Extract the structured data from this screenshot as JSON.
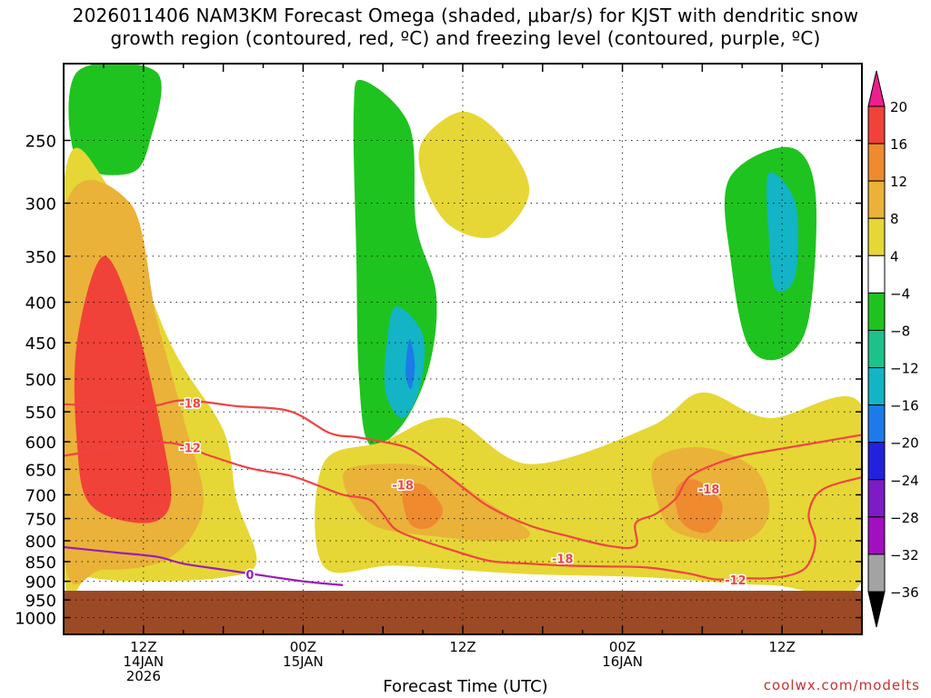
{
  "title": {
    "line1": "2026011406 NAM3KM Forecast Omega (shaded, μbar/s) for KJST with dendritic snow",
    "line2": "growth region (contoured, red, ºC) and freezing level (contoured, purple, ºC)"
  },
  "credit": "coolwx.com/modelts",
  "chart_data": {
    "type": "heatmap",
    "title": "2026011406 NAM3KM Forecast Omega (shaded, μbar/s) for KJST with dendritic snow growth region (contoured, red, ºC) and freezing level (contoured, purple, ºC)",
    "xlabel": "Forecast Time (UTC)",
    "ylabel": "",
    "x_unit": "hours since 2026-01-14 06Z",
    "xlim": [
      0,
      60
    ],
    "ylim_hpa": [
      1050,
      200
    ],
    "y_scale": "log-pressure",
    "yticks": [
      250,
      300,
      350,
      400,
      450,
      500,
      550,
      600,
      650,
      700,
      750,
      800,
      850,
      900,
      950,
      1000
    ],
    "xticks": [
      {
        "x": 6,
        "lines": [
          "12Z",
          "14JAN",
          "2026"
        ]
      },
      {
        "x": 18,
        "lines": [
          "00Z",
          "15JAN"
        ]
      },
      {
        "x": 30,
        "lines": [
          "12Z"
        ]
      },
      {
        "x": 42,
        "lines": [
          "00Z",
          "16JAN"
        ]
      },
      {
        "x": 54,
        "lines": [
          "12Z"
        ]
      }
    ],
    "grid": true,
    "surface_pressure_hpa": 925,
    "colorbar": {
      "labels": [
        20,
        16,
        12,
        8,
        4,
        -4,
        -8,
        -12,
        -16,
        -20,
        -24,
        -28,
        -32,
        -36
      ],
      "colors": [
        "#ed1f8c",
        "#f04238",
        "#ef8a2f",
        "#eab239",
        "#e6d736",
        "#ffffff",
        "#1fc31f",
        "#1dc28a",
        "#12b4c6",
        "#1c7be8",
        "#2222de",
        "#7d1bc4",
        "#a10fbf",
        "#a3a3a3",
        "#000000"
      ],
      "unit": "μbar/s"
    },
    "omega_regions": [
      {
        "name": "green-tl",
        "value": -6,
        "points": [
          [
            1,
            205
          ],
          [
            7,
            205
          ],
          [
            6.5,
            250
          ],
          [
            5,
            275
          ],
          [
            1,
            265
          ]
        ]
      },
      {
        "name": "green-mid",
        "value": -6,
        "points": [
          [
            22.5,
            210
          ],
          [
            26,
            240
          ],
          [
            26.5,
            320
          ],
          [
            28,
            390
          ],
          [
            27.5,
            480
          ],
          [
            25.5,
            570
          ],
          [
            23,
            605
          ],
          [
            22.2,
            500
          ],
          [
            22,
            350
          ],
          [
            21.8,
            230
          ]
        ]
      },
      {
        "name": "cyan-mid",
        "value": -12,
        "points": [
          [
            25,
            405
          ],
          [
            27,
            440
          ],
          [
            26.8,
            510
          ],
          [
            25.5,
            560
          ],
          [
            24.2,
            520
          ],
          [
            24.3,
            450
          ]
        ]
      },
      {
        "name": "blue-mid",
        "value": -18,
        "points": [
          [
            26,
            445
          ],
          [
            26.4,
            480
          ],
          [
            26.1,
            515
          ],
          [
            25.7,
            490
          ]
        ]
      },
      {
        "name": "green-right",
        "value": -6,
        "points": [
          [
            50,
            280
          ],
          [
            54.5,
            255
          ],
          [
            56.5,
            290
          ],
          [
            56,
            420
          ],
          [
            54,
            470
          ],
          [
            51.5,
            455
          ],
          [
            50.2,
            360
          ]
        ]
      },
      {
        "name": "cyan-right",
        "value": -12,
        "points": [
          [
            53,
            275
          ],
          [
            55,
            300
          ],
          [
            55,
            370
          ],
          [
            53.5,
            385
          ],
          [
            53,
            330
          ]
        ]
      },
      {
        "name": "yellow-top",
        "value": 6,
        "points": [
          [
            27,
            250
          ],
          [
            30,
            230
          ],
          [
            33,
            248
          ],
          [
            35,
            290
          ],
          [
            32.5,
            330
          ],
          [
            29,
            320
          ],
          [
            27,
            280
          ]
        ]
      },
      {
        "name": "yellow-main",
        "value": 6,
        "points": [
          [
            0,
            285
          ],
          [
            3,
            280
          ],
          [
            8,
            450
          ],
          [
            12,
            580
          ],
          [
            13,
            710
          ],
          [
            14.5,
            850
          ],
          [
            12,
            890
          ],
          [
            6,
            900
          ],
          [
            2,
            890
          ],
          [
            0,
            860
          ]
        ]
      },
      {
        "name": "yellow-low",
        "value": 6,
        "points": [
          [
            19.5,
            640
          ],
          [
            24,
            600
          ],
          [
            29,
            560
          ],
          [
            35,
            640
          ],
          [
            44,
            575
          ],
          [
            48,
            520
          ],
          [
            53,
            560
          ],
          [
            60,
            540
          ],
          [
            60,
            900
          ],
          [
            53,
            910
          ],
          [
            44,
            890
          ],
          [
            34,
            880
          ],
          [
            25,
            860
          ],
          [
            19.5,
            860
          ]
        ]
      },
      {
        "name": "orange-left",
        "value": 12,
        "points": [
          [
            0,
            310
          ],
          [
            5,
            300
          ],
          [
            7,
            420
          ],
          [
            9,
            560
          ],
          [
            10.5,
            720
          ],
          [
            8,
            840
          ],
          [
            3,
            870
          ],
          [
            0,
            830
          ]
        ]
      },
      {
        "name": "magenta-left",
        "value": 20,
        "points": [
          [
            1,
            450
          ],
          [
            3,
            350
          ],
          [
            5.5,
            430
          ],
          [
            7.5,
            600
          ],
          [
            8,
            720
          ],
          [
            6,
            760
          ],
          [
            2,
            720
          ],
          [
            1,
            600
          ]
        ]
      },
      {
        "name": "orange-mid",
        "value": 12,
        "points": [
          [
            21,
            660
          ],
          [
            24,
            640
          ],
          [
            28,
            650
          ],
          [
            31,
            700
          ],
          [
            35,
            780
          ],
          [
            33,
            800
          ],
          [
            28,
            790
          ],
          [
            23,
            760
          ]
        ]
      },
      {
        "name": "red-mid",
        "value": 16,
        "points": [
          [
            25.5,
            690
          ],
          [
            27,
            680
          ],
          [
            28.5,
            730
          ],
          [
            27.5,
            770
          ],
          [
            26,
            760
          ]
        ]
      },
      {
        "name": "orange-right",
        "value": 12,
        "points": [
          [
            44.5,
            630
          ],
          [
            48,
            610
          ],
          [
            52,
            650
          ],
          [
            53,
            740
          ],
          [
            51,
            800
          ],
          [
            46,
            780
          ],
          [
            44.5,
            700
          ]
        ]
      },
      {
        "name": "red-right",
        "value": 16,
        "points": [
          [
            46,
            690
          ],
          [
            47.5,
            670
          ],
          [
            49.5,
            720
          ],
          [
            48.5,
            780
          ],
          [
            46.5,
            760
          ]
        ]
      }
    ],
    "contours": [
      {
        "name": "dgz-minus18",
        "label": "-18",
        "color": "#ef4444",
        "points": [
          [
            0,
            538
          ],
          [
            6,
            542
          ],
          [
            9,
            532
          ],
          [
            13,
            541
          ],
          [
            17,
            549
          ],
          [
            20,
            585
          ],
          [
            22,
            592
          ],
          [
            24,
            600
          ],
          [
            26,
            612
          ],
          [
            28,
            645
          ],
          [
            30,
            685
          ],
          [
            32,
            725
          ],
          [
            35,
            765
          ],
          [
            38,
            790
          ],
          [
            41,
            812
          ],
          [
            43,
            812
          ],
          [
            43,
            760
          ],
          [
            44.5,
            740
          ],
          [
            46,
            708
          ],
          [
            47,
            665
          ],
          [
            49,
            640
          ],
          [
            51,
            625
          ],
          [
            54,
            612
          ],
          [
            57,
            600
          ],
          [
            60,
            588
          ]
        ]
      },
      {
        "name": "dgz-minus12",
        "label": "-12",
        "color": "#ef4444",
        "points": [
          [
            0,
            625
          ],
          [
            4,
            610
          ],
          [
            8,
            602
          ],
          [
            11,
            625
          ],
          [
            14,
            648
          ],
          [
            17,
            662
          ],
          [
            19,
            680
          ],
          [
            21,
            700
          ],
          [
            23,
            710
          ],
          [
            24,
            740
          ],
          [
            25,
            775
          ],
          [
            27,
            800
          ],
          [
            29,
            820
          ],
          [
            32,
            848
          ],
          [
            35,
            855
          ],
          [
            38,
            860
          ],
          [
            41,
            862
          ],
          [
            44,
            865
          ],
          [
            47,
            880
          ],
          [
            49,
            895
          ],
          [
            51,
            892
          ],
          [
            53,
            892
          ],
          [
            55,
            880
          ],
          [
            56,
            855
          ],
          [
            56.5,
            800
          ],
          [
            56,
            740
          ],
          [
            57,
            690
          ],
          [
            60,
            665
          ]
        ]
      },
      {
        "name": "freezing-level",
        "label": "0",
        "color": "#9a1eb3",
        "points": [
          [
            0,
            815
          ],
          [
            4,
            828
          ],
          [
            7,
            838
          ],
          [
            9,
            855
          ],
          [
            12,
            870
          ],
          [
            14,
            880
          ],
          [
            18,
            900
          ],
          [
            21,
            910
          ]
        ]
      }
    ],
    "contour_labels": [
      {
        "text": "-18",
        "x": 9.5,
        "p": 536,
        "color": "#ef4444"
      },
      {
        "text": "-12",
        "x": 9.5,
        "p": 610,
        "color": "#ef4444"
      },
      {
        "text": "-18",
        "x": 25.5,
        "p": 680,
        "color": "#ef4444"
      },
      {
        "text": "-18",
        "x": 37.5,
        "p": 842,
        "color": "#ef4444"
      },
      {
        "text": "-12",
        "x": 50.5,
        "p": 896,
        "color": "#ef4444"
      },
      {
        "text": "-18",
        "x": 48.5,
        "p": 688,
        "color": "#ef4444"
      },
      {
        "text": "0",
        "x": 14,
        "p": 882,
        "color": "#9a1eb3"
      }
    ]
  }
}
